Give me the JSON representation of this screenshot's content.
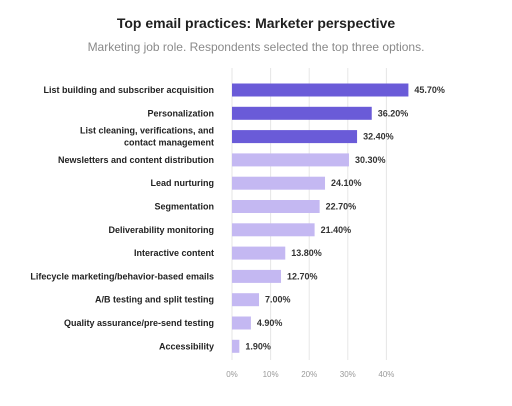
{
  "chart_data": {
    "type": "bar",
    "orientation": "horizontal",
    "title": "Top email practices: Marketer perspective",
    "subtitle": "Marketing job role. Respondents selected the top three options.",
    "categories": [
      [
        "List building and subscriber acquisition"
      ],
      [
        "Personalization"
      ],
      [
        "List cleaning, verifications, and",
        "contact management"
      ],
      [
        "Newsletters and content distribution"
      ],
      [
        "Lead nurturing"
      ],
      [
        "Segmentation"
      ],
      [
        "Deliverability monitoring"
      ],
      [
        "Interactive content"
      ],
      [
        "Lifecycle marketing/behavior-based emails"
      ],
      [
        "A/B testing and split testing"
      ],
      [
        "Quality assurance/pre-send testing"
      ],
      [
        "Accessibility"
      ]
    ],
    "values": [
      45.7,
      36.2,
      32.4,
      30.3,
      24.1,
      22.7,
      21.4,
      13.8,
      12.7,
      7.0,
      4.9,
      1.9
    ],
    "value_labels": [
      "45.70%",
      "36.20%",
      "32.40%",
      "30.30%",
      "24.10%",
      "22.70%",
      "21.40%",
      "13.80%",
      "12.70%",
      "7.00%",
      "4.90%",
      "1.90%"
    ],
    "highlight_count": 3,
    "xlim": [
      0,
      46
    ],
    "xticks": [
      0,
      10,
      20,
      30,
      40
    ],
    "xtick_labels": [
      "0%",
      "10%",
      "20%",
      "30%",
      "40%"
    ],
    "grid": true,
    "colors": {
      "highlight": "#6a5bd8",
      "normal": "#c4b8f2",
      "grid": "#e6e6e6"
    }
  }
}
